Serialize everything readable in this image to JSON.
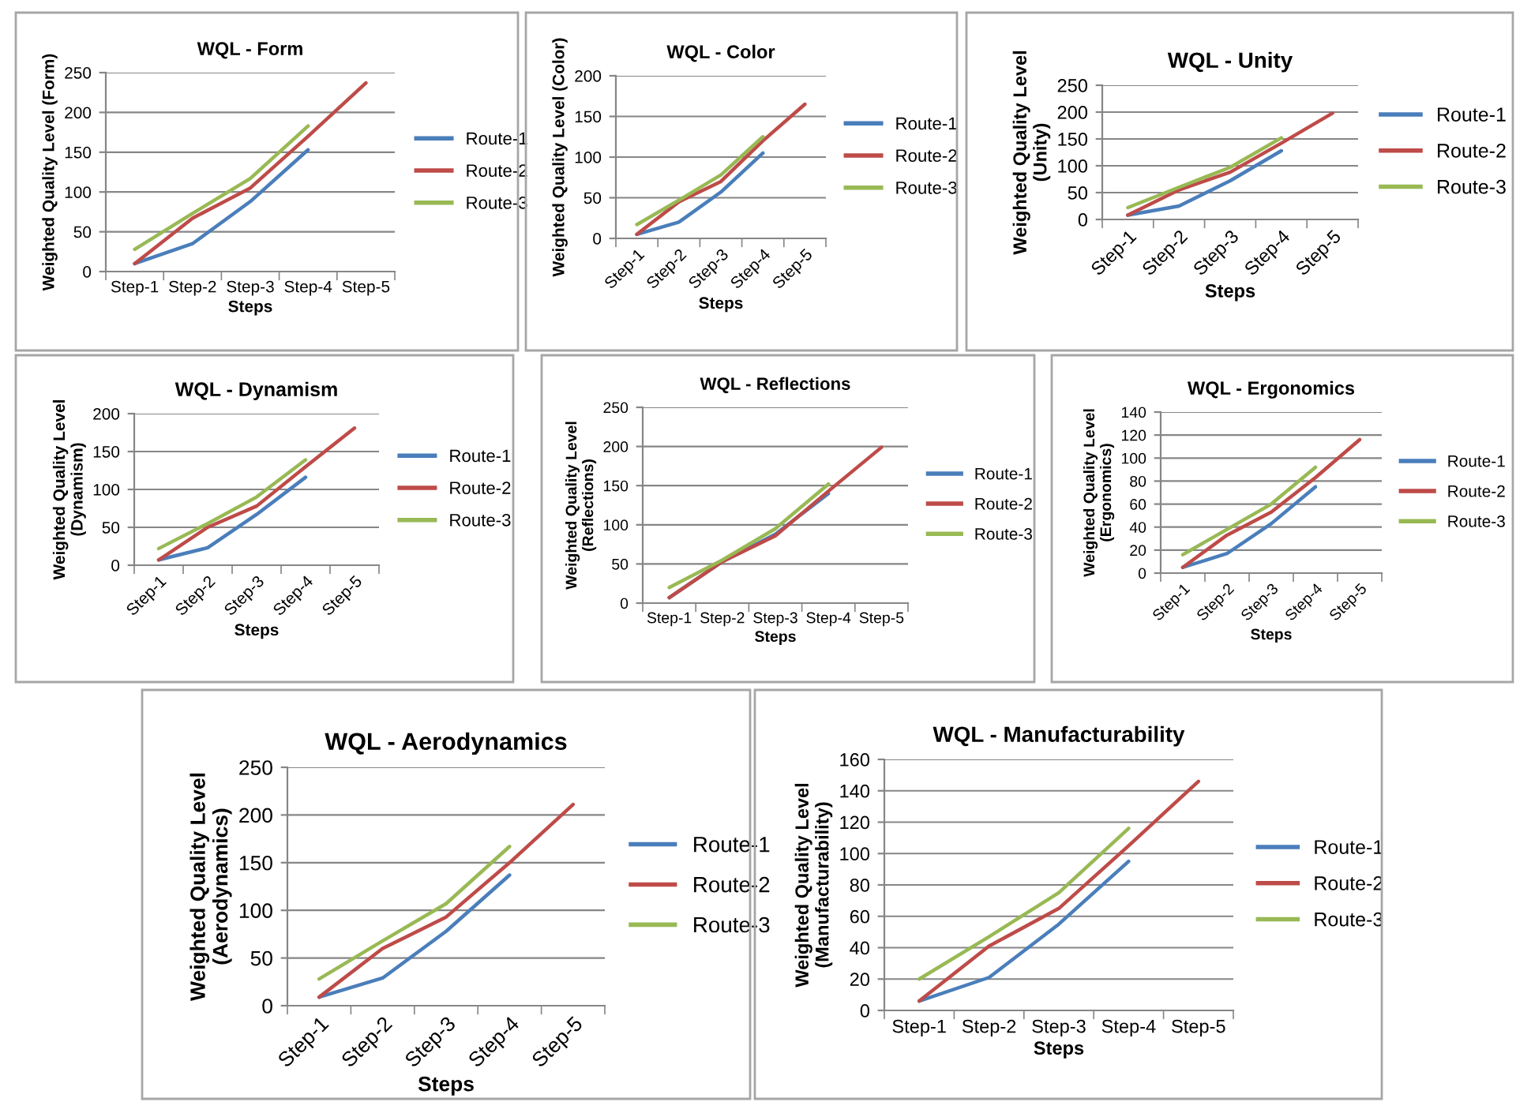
{
  "chart_data": [
    {
      "type": "line",
      "title": "WQL - Form",
      "xlabel": "Steps",
      "ylabel": "Weighted Quality Level (Form)",
      "categories": [
        "Step-1",
        "Step-2",
        "Step-3",
        "Step-4",
        "Step-5"
      ],
      "ylim": [
        0,
        250
      ],
      "yticks": [
        0,
        50,
        100,
        150,
        200,
        250
      ],
      "grid": "y",
      "legend": "right",
      "marker": "none",
      "series": [
        {
          "name": "Route-1",
          "color": "#4a7ebb",
          "values": [
            10,
            35,
            88,
            153,
            null
          ]
        },
        {
          "name": "Route-2",
          "color": "#be4b48",
          "values": [
            10,
            67,
            105,
            170,
            237
          ]
        },
        {
          "name": "Route-3",
          "color": "#98b954",
          "values": [
            28,
            73,
            117,
            183,
            null
          ]
        }
      ]
    },
    {
      "type": "line",
      "title": "WQL - Color",
      "xlabel": "Steps",
      "ylabel": "Weighted Quality Level (Color)",
      "categories": [
        "Step-1",
        "Step-2",
        "Step-3",
        "Step-4",
        "Step-5"
      ],
      "ylim": [
        0,
        200
      ],
      "yticks": [
        0,
        50,
        100,
        150,
        200
      ],
      "grid": "y",
      "legend": "right",
      "marker": "none",
      "series": [
        {
          "name": "Route-1",
          "color": "#4a7ebb",
          "values": [
            5,
            20,
            57,
            105,
            null
          ]
        },
        {
          "name": "Route-2",
          "color": "#be4b48",
          "values": [
            5,
            45,
            70,
            120,
            165
          ]
        },
        {
          "name": "Route-3",
          "color": "#98b954",
          "values": [
            17,
            47,
            78,
            125,
            null
          ]
        }
      ]
    },
    {
      "type": "line",
      "title": "WQL - Unity",
      "xlabel": "Steps",
      "ylabel": "Weighted Quality Level\n(Unity)",
      "categories": [
        "Step-1",
        "Step-2",
        "Step-3",
        "Step-4",
        "Step-5"
      ],
      "ylim": [
        0,
        250
      ],
      "yticks": [
        0,
        50,
        100,
        150,
        200,
        250
      ],
      "grid": "y",
      "legend": "right",
      "marker": "none",
      "series": [
        {
          "name": "Route-1",
          "color": "#4a7ebb",
          "values": [
            8,
            25,
            72,
            128,
            null
          ]
        },
        {
          "name": "Route-2",
          "color": "#be4b48",
          "values": [
            8,
            55,
            88,
            142,
            198
          ]
        },
        {
          "name": "Route-3",
          "color": "#98b954",
          "values": [
            22,
            60,
            97,
            152,
            null
          ]
        }
      ]
    },
    {
      "type": "line",
      "title": "WQL - Dynamism",
      "xlabel": "Steps",
      "ylabel": "Weighted Quality Level\n(Dynamism)",
      "categories": [
        "Step-1",
        "Step-2",
        "Step-3",
        "Step-4",
        "Step-5"
      ],
      "ylim": [
        0,
        200
      ],
      "yticks": [
        0,
        50,
        100,
        150,
        200
      ],
      "grid": "y",
      "legend": "right",
      "marker": "none",
      "series": [
        {
          "name": "Route-1",
          "color": "#4a7ebb",
          "values": [
            7,
            23,
            67,
            116,
            null
          ]
        },
        {
          "name": "Route-2",
          "color": "#be4b48",
          "values": [
            7,
            50,
            78,
            130,
            181
          ]
        },
        {
          "name": "Route-3",
          "color": "#98b954",
          "values": [
            22,
            55,
            90,
            139,
            null
          ]
        }
      ]
    },
    {
      "type": "line",
      "title": "WQL - Reflections",
      "xlabel": "Steps",
      "ylabel": "Weighted Quality Level\n(Reflections)",
      "categories": [
        "Step-1",
        "Step-2",
        "Step-3",
        "Step-4",
        "Step-5"
      ],
      "ylim": [
        0,
        250
      ],
      "yticks": [
        0,
        50,
        100,
        150,
        200,
        250
      ],
      "grid": "y",
      "legend": "right",
      "marker": "none",
      "series": [
        {
          "name": "Route-1",
          "color": "#4a7ebb",
          "values": [
            7,
            53,
            88,
            140,
            null
          ]
        },
        {
          "name": "Route-2",
          "color": "#be4b48",
          "values": [
            7,
            53,
            86,
            143,
            199
          ]
        },
        {
          "name": "Route-3",
          "color": "#98b954",
          "values": [
            20,
            55,
            95,
            152,
            null
          ]
        }
      ]
    },
    {
      "type": "line",
      "title": "WQL - Ergonomics",
      "xlabel": "Steps",
      "ylabel": "Weighted Quality Level\n(Ergonomics)",
      "categories": [
        "Step-1",
        "Step-2",
        "Step-3",
        "Step-4",
        "Step-5"
      ],
      "ylim": [
        0,
        140
      ],
      "yticks": [
        0,
        20,
        40,
        60,
        80,
        100,
        120,
        140
      ],
      "grid": "y",
      "legend": "right",
      "marker": "none",
      "series": [
        {
          "name": "Route-1",
          "color": "#4a7ebb",
          "values": [
            5,
            17,
            43,
            75,
            null
          ]
        },
        {
          "name": "Route-2",
          "color": "#be4b48",
          "values": [
            5,
            33,
            53,
            83,
            116
          ]
        },
        {
          "name": "Route-3",
          "color": "#98b954",
          "values": [
            16,
            38,
            60,
            92,
            null
          ]
        }
      ]
    },
    {
      "type": "line",
      "title": "WQL - Aerodynamics",
      "xlabel": "Steps",
      "ylabel": "Weighted Quality Level\n(Aerodynamics)",
      "categories": [
        "Step-1",
        "Step-2",
        "Step-3",
        "Step-4",
        "Step-5"
      ],
      "ylim": [
        0,
        250
      ],
      "yticks": [
        0,
        50,
        100,
        150,
        200,
        250
      ],
      "grid": "y",
      "legend": "right",
      "marker": "none",
      "series": [
        {
          "name": "Route-1",
          "color": "#4a7ebb",
          "values": [
            9,
            29,
            78,
            137,
            null
          ]
        },
        {
          "name": "Route-2",
          "color": "#be4b48",
          "values": [
            9,
            60,
            93,
            150,
            211
          ]
        },
        {
          "name": "Route-3",
          "color": "#98b954",
          "values": [
            28,
            68,
            107,
            167,
            null
          ]
        }
      ]
    },
    {
      "type": "line",
      "title": "WQL - Manufacturability",
      "xlabel": "Steps",
      "ylabel": "Weighted Quality Level\n(Manufacturability)",
      "categories": [
        "Step-1",
        "Step-2",
        "Step-3",
        "Step-4",
        "Step-5"
      ],
      "ylim": [
        0,
        160
      ],
      "yticks": [
        0,
        20,
        40,
        60,
        80,
        100,
        120,
        140,
        160
      ],
      "grid": "y",
      "legend": "right",
      "marker": "none",
      "series": [
        {
          "name": "Route-1",
          "color": "#4a7ebb",
          "values": [
            6,
            21,
            55,
            95,
            null
          ]
        },
        {
          "name": "Route-2",
          "color": "#be4b48",
          "values": [
            6,
            41,
            65,
            105,
            146
          ]
        },
        {
          "name": "Route-3",
          "color": "#98b954",
          "values": [
            20,
            47,
            75,
            116,
            null
          ]
        }
      ]
    }
  ]
}
